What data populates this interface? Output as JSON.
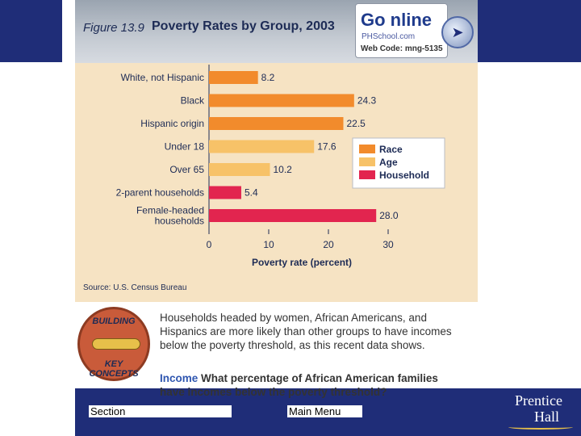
{
  "figure": {
    "label": "Figure 13.9",
    "title": "Poverty Rates by Group, 2003"
  },
  "go_online": {
    "brand": "Go nline",
    "site": "PHSchool.com",
    "web_code": "Web Code: mng-5135",
    "icon": "cursor-globe-icon"
  },
  "chart_data": {
    "type": "bar",
    "orientation": "horizontal",
    "title": "Poverty Rates by Group, 2003",
    "categories": [
      "White, not Hispanic",
      "Black",
      "Hispanic origin",
      "Under 18",
      "Over 65",
      "2-parent households",
      "Female-headed households"
    ],
    "category_lines": [
      [
        "White, not Hispanic"
      ],
      [
        "Black"
      ],
      [
        "Hispanic origin"
      ],
      [
        "Under 18"
      ],
      [
        "Over 65"
      ],
      [
        "2-parent households"
      ],
      [
        "Female-headed",
        "households"
      ]
    ],
    "values": [
      8.2,
      24.3,
      22.5,
      17.6,
      10.2,
      5.4,
      28.0
    ],
    "value_labels": [
      "8.2",
      "24.3",
      "22.5",
      "17.6",
      "10.2",
      "5.4",
      "28.0"
    ],
    "groups": [
      "Race",
      "Race",
      "Race",
      "Age",
      "Age",
      "Household",
      "Household"
    ],
    "xlabel": "Poverty rate (percent)",
    "ylabel": "",
    "xlim": [
      0,
      30
    ],
    "xticks": [
      0,
      10,
      20,
      30
    ],
    "legend": {
      "placement": "right",
      "entries": [
        {
          "name": "Race",
          "color": "#f28b2c"
        },
        {
          "name": "Age",
          "color": "#f7c268"
        },
        {
          "name": "Household",
          "color": "#e2254f"
        }
      ]
    },
    "source": "Source: U.S. Census Bureau"
  },
  "concept": {
    "badge_top": "BUILDING",
    "badge_bottom": "KEY CONCEPTS",
    "text": "Households headed by women, African Americans, and Hispanics are more likely than other groups to have incomes below the poverty threshold, as this recent data shows.",
    "question_label": "Income",
    "question_line1": "What percentage of African American families",
    "question_line2": "have incomes below the poverty threshold?"
  },
  "nav": {
    "section": "Section",
    "main_menu": "Main Menu"
  },
  "publisher": {
    "line1": "Prentice",
    "line2": "Hall"
  }
}
